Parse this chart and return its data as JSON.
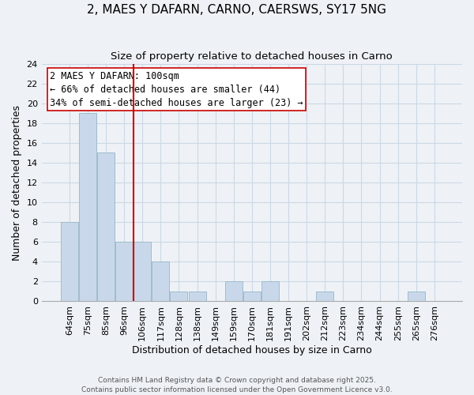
{
  "title": "2, MAES Y DAFARN, CARNO, CAERSWS, SY17 5NG",
  "subtitle": "Size of property relative to detached houses in Carno",
  "xlabel": "Distribution of detached houses by size in Carno",
  "ylabel": "Number of detached properties",
  "categories": [
    "64sqm",
    "75sqm",
    "85sqm",
    "96sqm",
    "106sqm",
    "117sqm",
    "128sqm",
    "138sqm",
    "149sqm",
    "159sqm",
    "170sqm",
    "181sqm",
    "191sqm",
    "202sqm",
    "212sqm",
    "223sqm",
    "234sqm",
    "244sqm",
    "255sqm",
    "265sqm",
    "276sqm"
  ],
  "values": [
    8,
    19,
    15,
    6,
    6,
    4,
    1,
    1,
    0,
    2,
    1,
    2,
    0,
    0,
    1,
    0,
    0,
    0,
    0,
    1,
    0
  ],
  "bar_color": "#c8d8ea",
  "bar_edge_color": "#a0bccc",
  "vline_pos": 3.5,
  "vline_color": "#cc0000",
  "annotation_text": "2 MAES Y DAFARN: 100sqm\n← 66% of detached houses are smaller (44)\n34% of semi-detached houses are larger (23) →",
  "annotation_box_edgecolor": "#cc0000",
  "ylim": [
    0,
    24
  ],
  "yticks": [
    0,
    2,
    4,
    6,
    8,
    10,
    12,
    14,
    16,
    18,
    20,
    22,
    24
  ],
  "grid_color": "#ccd8e4",
  "background_color": "#eef2f7",
  "footer_line1": "Contains HM Land Registry data © Crown copyright and database right 2025.",
  "footer_line2": "Contains public sector information licensed under the Open Government Licence v3.0.",
  "title_fontsize": 11,
  "subtitle_fontsize": 9.5,
  "axis_label_fontsize": 9,
  "tick_fontsize": 8,
  "annotation_fontsize": 8.5,
  "footer_fontsize": 6.5
}
